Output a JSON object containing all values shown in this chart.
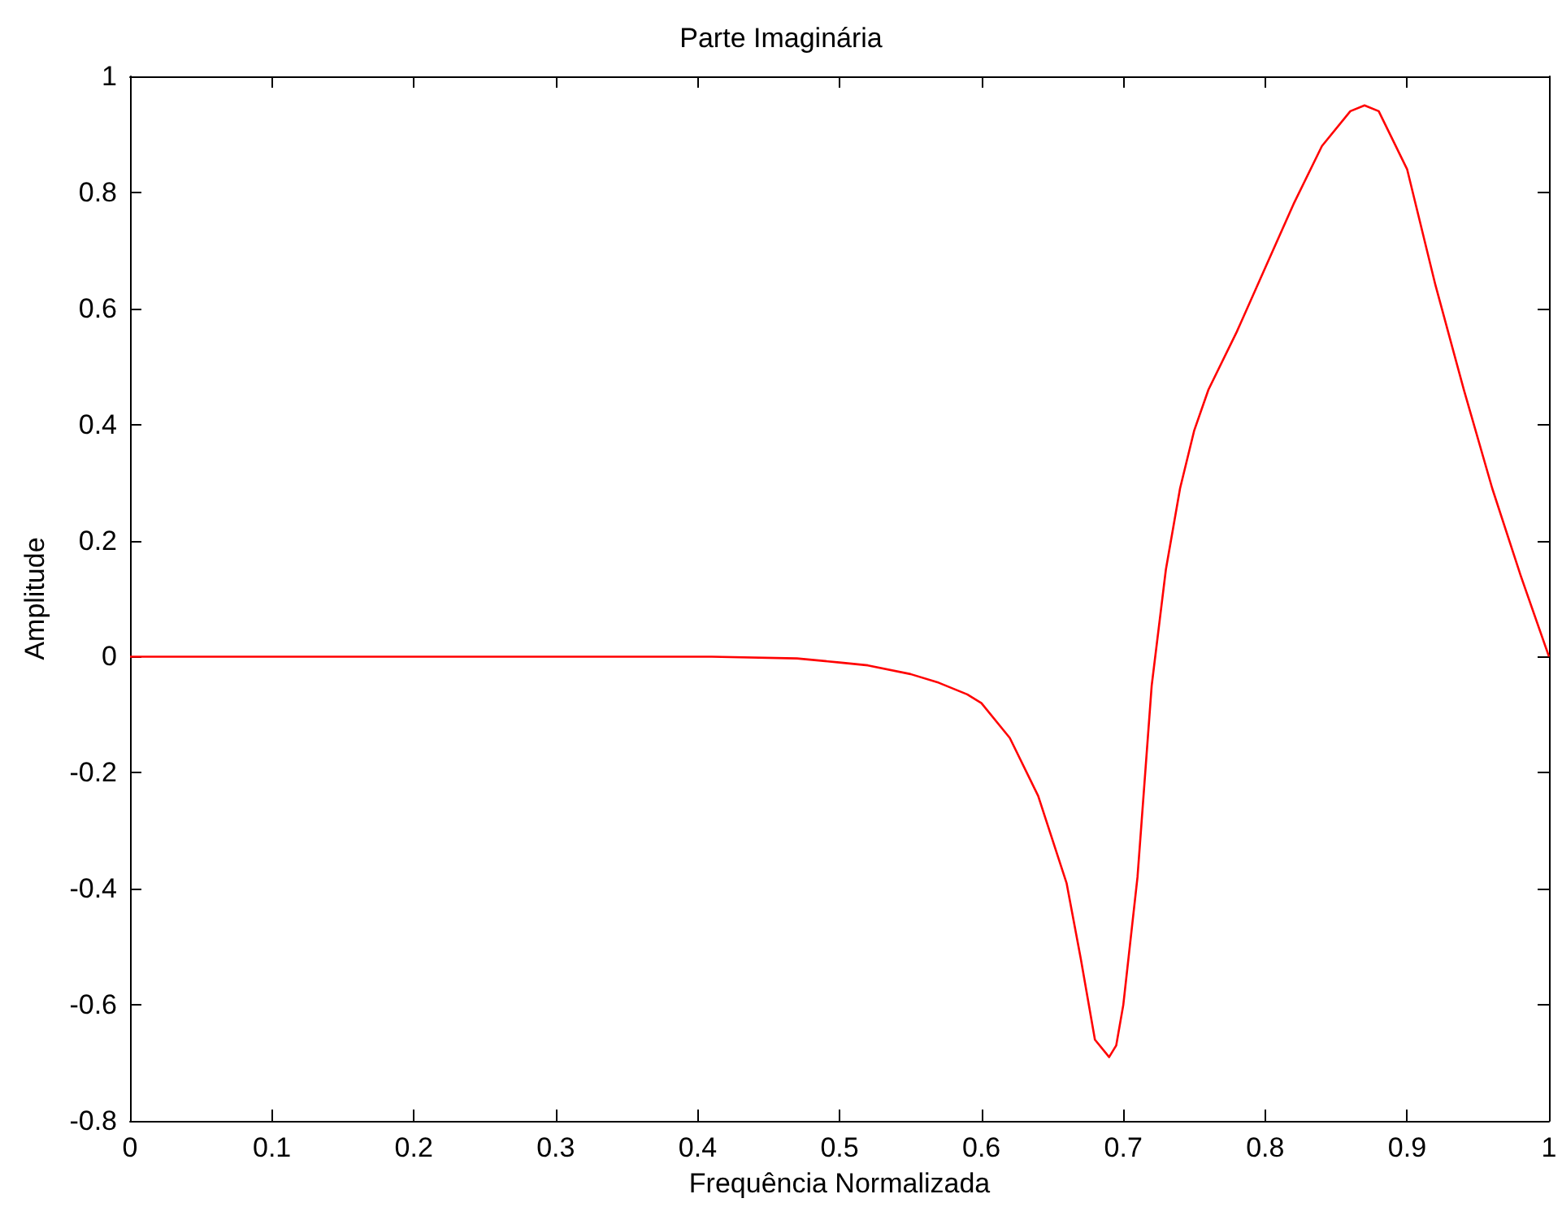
{
  "chart_data": {
    "type": "line",
    "title": "Parte Imaginária",
    "xlabel": "Frequência Normalizada",
    "ylabel": "Amplitude",
    "x": [
      0,
      0.1,
      0.2,
      0.3,
      0.41,
      0.47,
      0.5,
      0.52,
      0.55,
      0.57,
      0.59,
      0.6,
      0.62,
      0.64,
      0.66,
      0.67,
      0.68,
      0.69,
      0.695,
      0.7,
      0.71,
      0.72,
      0.73,
      0.74,
      0.75,
      0.76,
      0.78,
      0.8,
      0.82,
      0.84,
      0.86,
      0.87,
      0.88,
      0.9,
      0.92,
      0.94,
      0.96,
      0.98,
      1
    ],
    "series": [
      {
        "color": "#ff0000",
        "values": [
          0,
          0,
          0,
          0,
          0,
          -0.003,
          -0.01,
          -0.015,
          -0.03,
          -0.045,
          -0.065,
          -0.08,
          -0.14,
          -0.24,
          -0.39,
          -0.52,
          -0.66,
          -0.69,
          -0.67,
          -0.6,
          -0.38,
          -0.05,
          0.15,
          0.29,
          0.39,
          0.46,
          0.56,
          0.67,
          0.78,
          0.88,
          0.94,
          0.95,
          0.94,
          0.84,
          0.64,
          0.46,
          0.29,
          0.14,
          0
        ]
      }
    ],
    "xlim": [
      0,
      1
    ],
    "xticks": [
      0,
      0.1,
      0.2,
      0.3,
      0.4,
      0.5,
      0.6,
      0.7,
      0.8,
      0.9,
      1
    ],
    "ylim": [
      -0.8,
      1
    ],
    "yticks": [
      -0.8,
      -0.6,
      -0.4,
      -0.2,
      0,
      0.2,
      0.4,
      0.6,
      0.8,
      1
    ],
    "grid": false,
    "marker": "none",
    "line_style": "solid"
  }
}
